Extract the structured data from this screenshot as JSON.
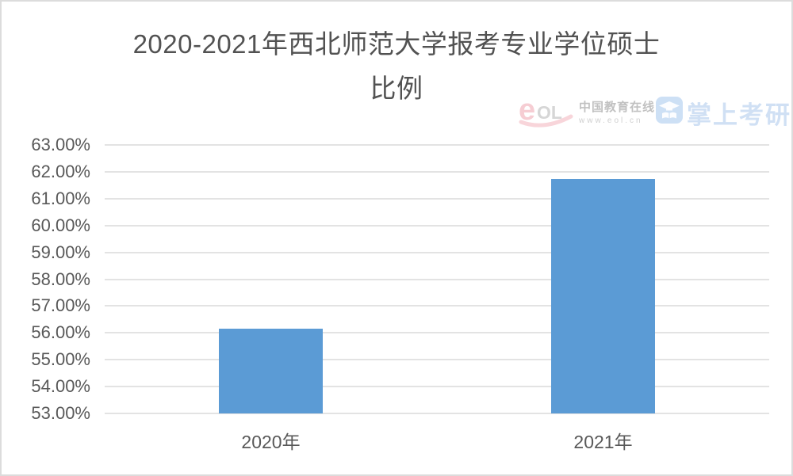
{
  "page": {
    "title_line1": "2020-2021年西北师范大学报考专业学位硕士",
    "title_line2": "比例"
  },
  "brand": {
    "logo_text_e": "e",
    "logo_text_ol": "OL",
    "site_name": "中国教育在线",
    "site_url": "www.eol.cn",
    "app_name": "掌上考研"
  },
  "colors": {
    "bar": "#5B9BD5",
    "gridline": "#e3e3e3",
    "axis_text": "#595959",
    "title_text": "#525252",
    "logo_pink": "#ee8f9d",
    "logo_gray": "#9e9e9e",
    "app_icon_blue": "#9dc2ec",
    "app_name_blue": "#aac8ec"
  },
  "chart_data": {
    "type": "bar",
    "title": "2020-2021年西北师范大学报考专业学位硕士比例",
    "categories": [
      "2020年",
      "2021年"
    ],
    "values": [
      56.17,
      61.72
    ],
    "xlabel": "",
    "ylabel": "",
    "ylim": [
      53,
      63
    ],
    "ytick_step": 1,
    "ytick_format": "percent_2dp",
    "grid": true,
    "legend": false
  }
}
